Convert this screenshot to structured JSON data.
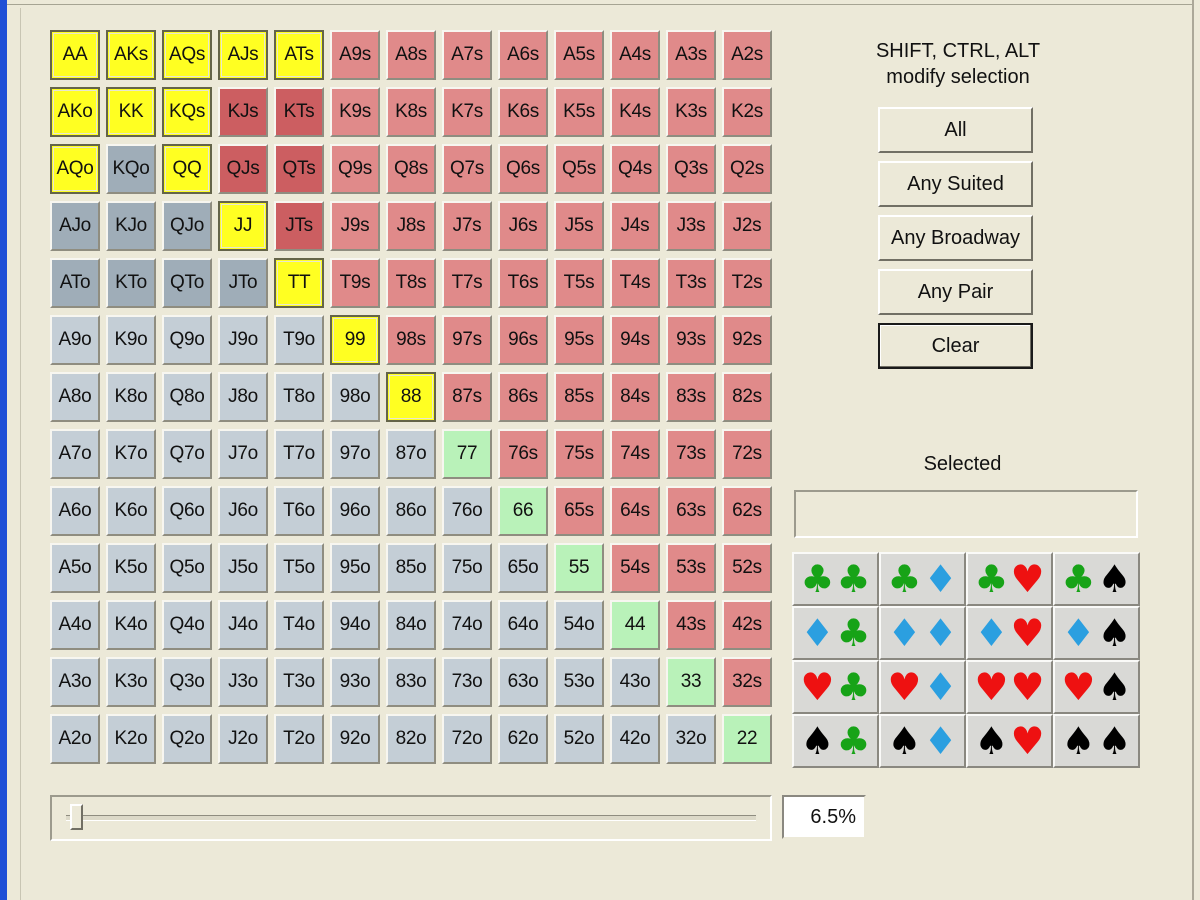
{
  "matrix": {
    "rows": [
      [
        "AA",
        "AKs",
        "AQs",
        "AJs",
        "ATs",
        "A9s",
        "A8s",
        "A7s",
        "A6s",
        "A5s",
        "A4s",
        "A3s",
        "A2s"
      ],
      [
        "AKo",
        "KK",
        "KQs",
        "KJs",
        "KTs",
        "K9s",
        "K8s",
        "K7s",
        "K6s",
        "K5s",
        "K4s",
        "K3s",
        "K2s"
      ],
      [
        "AQo",
        "KQo",
        "QQ",
        "QJs",
        "QTs",
        "Q9s",
        "Q8s",
        "Q7s",
        "Q6s",
        "Q5s",
        "Q4s",
        "Q3s",
        "Q2s"
      ],
      [
        "AJo",
        "KJo",
        "QJo",
        "JJ",
        "JTs",
        "J9s",
        "J8s",
        "J7s",
        "J6s",
        "J5s",
        "J4s",
        "J3s",
        "J2s"
      ],
      [
        "ATo",
        "KTo",
        "QTo",
        "JTo",
        "TT",
        "T9s",
        "T8s",
        "T7s",
        "T6s",
        "T5s",
        "T4s",
        "T3s",
        "T2s"
      ],
      [
        "A9o",
        "K9o",
        "Q9o",
        "J9o",
        "T9o",
        "99",
        "98s",
        "97s",
        "96s",
        "95s",
        "94s",
        "93s",
        "92s"
      ],
      [
        "A8o",
        "K8o",
        "Q8o",
        "J8o",
        "T8o",
        "98o",
        "88",
        "87s",
        "86s",
        "85s",
        "84s",
        "83s",
        "82s"
      ],
      [
        "A7o",
        "K7o",
        "Q7o",
        "J7o",
        "T7o",
        "97o",
        "87o",
        "77",
        "76s",
        "75s",
        "74s",
        "73s",
        "72s"
      ],
      [
        "A6o",
        "K6o",
        "Q6o",
        "J6o",
        "T6o",
        "96o",
        "86o",
        "76o",
        "66",
        "65s",
        "64s",
        "63s",
        "62s"
      ],
      [
        "A5o",
        "K5o",
        "Q5o",
        "J5o",
        "T5o",
        "95o",
        "85o",
        "75o",
        "65o",
        "55",
        "54s",
        "53s",
        "52s"
      ],
      [
        "A4o",
        "K4o",
        "Q4o",
        "J4o",
        "T4o",
        "94o",
        "84o",
        "74o",
        "64o",
        "54o",
        "44",
        "43s",
        "42s"
      ],
      [
        "A3o",
        "K3o",
        "Q3o",
        "J3o",
        "T3o",
        "93o",
        "83o",
        "73o",
        "63o",
        "53o",
        "43o",
        "33",
        "32s"
      ],
      [
        "A2o",
        "K2o",
        "Q2o",
        "J2o",
        "T2o",
        "92o",
        "82o",
        "72o",
        "62o",
        "52o",
        "42o",
        "32o",
        "22"
      ]
    ],
    "selected": [
      "AA",
      "AKs",
      "AQs",
      "AJs",
      "ATs",
      "AKo",
      "KK",
      "KQs",
      "AQo",
      "QQ",
      "JJ",
      "TT",
      "99",
      "88"
    ],
    "highlighted_dim": [
      "KJs",
      "KTs",
      "QJs",
      "QTs",
      "JTs",
      "KQo",
      "AJo",
      "KJo",
      "QJo",
      "ATo",
      "KTo",
      "QTo",
      "JTo"
    ],
    "colors": {
      "suited": "#e08a8a",
      "offsuit": "#c4ced6",
      "pair": "#b9f2b9",
      "selected": "#ffff22",
      "dim_suited": "#cc5e61",
      "dim_offsuit": "#9fadb8"
    }
  },
  "hint": {
    "line1": "SHIFT, CTRL, ALT",
    "line2": "modify selection"
  },
  "buttons": {
    "all": "All",
    "any_suited": "Any Suited",
    "any_broadway": "Any Broadway",
    "any_pair": "Any Pair",
    "clear": "Clear"
  },
  "selected_label": "Selected",
  "selected_value": "",
  "suits": {
    "order": [
      "club",
      "diamond",
      "heart",
      "spade"
    ],
    "glyphs": {
      "club": "♣",
      "diamond": "♦",
      "heart": "♥",
      "spade": "♠"
    },
    "colors": {
      "club": "#17a317",
      "diamond": "#2b9fe0",
      "heart": "#ee1111",
      "spade": "#000000"
    }
  },
  "slider": {
    "value_fraction": 0.065,
    "display": "6.5%"
  }
}
